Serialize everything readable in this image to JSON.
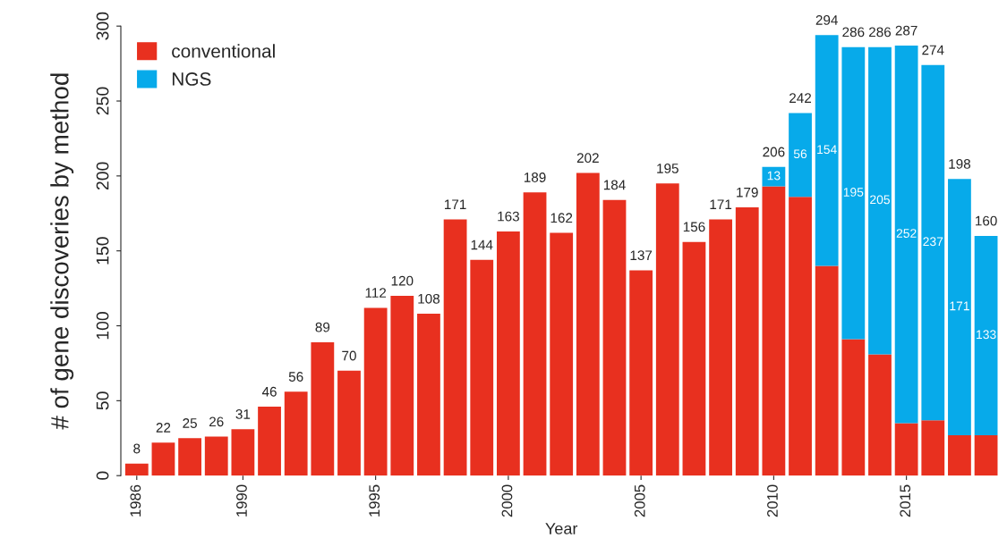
{
  "chart_data": {
    "type": "bar",
    "stacked": true,
    "categories": [
      "1986",
      null,
      null,
      null,
      "1990",
      null,
      null,
      null,
      null,
      "1995",
      null,
      null,
      null,
      null,
      "2000",
      null,
      null,
      null,
      null,
      "2005",
      null,
      null,
      null,
      null,
      "2010",
      null,
      null,
      null,
      null,
      "2015",
      null,
      null,
      null
    ],
    "series": [
      {
        "name": "conventional",
        "color": "#e8301f",
        "values": [
          8,
          22,
          25,
          26,
          31,
          46,
          56,
          89,
          70,
          112,
          120,
          108,
          171,
          144,
          163,
          189,
          162,
          202,
          184,
          137,
          195,
          156,
          171,
          179,
          193,
          186,
          140,
          91,
          81,
          35,
          37,
          27,
          27
        ]
      },
      {
        "name": "NGS",
        "color": "#07aaea",
        "values": [
          0,
          0,
          0,
          0,
          0,
          0,
          0,
          0,
          0,
          0,
          0,
          0,
          0,
          0,
          0,
          0,
          0,
          0,
          0,
          0,
          0,
          0,
          0,
          0,
          13,
          56,
          154,
          195,
          205,
          252,
          237,
          171,
          133
        ],
        "value_labels": [
          null,
          null,
          null,
          null,
          null,
          null,
          null,
          null,
          null,
          null,
          null,
          null,
          null,
          null,
          null,
          null,
          null,
          null,
          null,
          null,
          null,
          null,
          null,
          null,
          "13",
          "56",
          "154",
          "195",
          "205",
          "252",
          "237",
          "171",
          "133"
        ]
      }
    ],
    "totals": [
      "8",
      "22",
      "25",
      "26",
      "31",
      "46",
      "56",
      "89",
      "70",
      "112",
      "120",
      "108",
      "171",
      "144",
      "163",
      "189",
      "162",
      "202",
      "184",
      "137",
      "195",
      "156",
      "171",
      "179",
      "206",
      "242",
      "294",
      "286",
      "286",
      "287",
      "274",
      "198",
      "160"
    ],
    "xlabel": "Year",
    "ylabel": "# of gene discoveries by method",
    "ylim": [
      0,
      300
    ],
    "yticks": [
      0,
      50,
      100,
      150,
      200,
      250,
      300
    ],
    "grid": false,
    "legend": "top left"
  }
}
